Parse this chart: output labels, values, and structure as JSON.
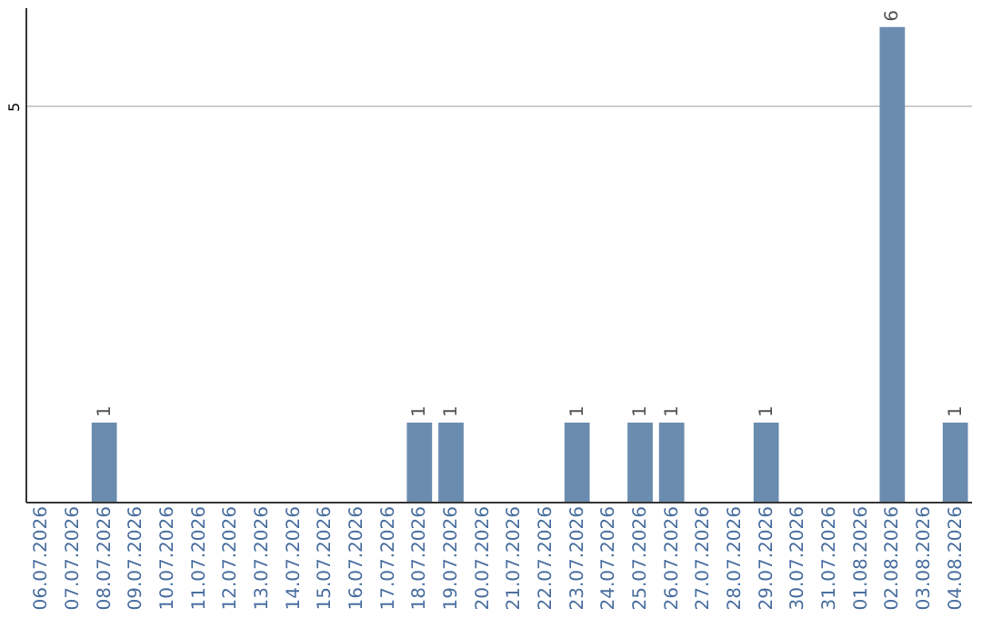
{
  "chart_data": {
    "type": "bar",
    "categories": [
      "06.07.2026",
      "07.07.2026",
      "08.07.2026",
      "09.07.2026",
      "10.07.2026",
      "11.07.2026",
      "12.07.2026",
      "13.07.2026",
      "14.07.2026",
      "15.07.2026",
      "16.07.2026",
      "17.07.2026",
      "18.07.2026",
      "19.07.2026",
      "20.07.2026",
      "21.07.2026",
      "22.07.2026",
      "23.07.2026",
      "24.07.2026",
      "25.07.2026",
      "26.07.2026",
      "27.07.2026",
      "28.07.2026",
      "29.07.2026",
      "30.07.2026",
      "31.07.2026",
      "01.08.2026",
      "02.08.2026",
      "03.08.2026",
      "04.08.2026"
    ],
    "values": [
      0,
      0,
      1,
      0,
      0,
      0,
      0,
      0,
      0,
      0,
      0,
      0,
      1,
      1,
      0,
      0,
      0,
      1,
      0,
      1,
      1,
      0,
      0,
      1,
      0,
      0,
      0,
      6,
      0,
      1
    ],
    "value_labels": [
      null,
      null,
      "1",
      null,
      null,
      null,
      null,
      null,
      null,
      null,
      null,
      null,
      "1",
      "1",
      null,
      null,
      null,
      "1",
      null,
      "1",
      "1",
      null,
      null,
      "1",
      null,
      null,
      null,
      "6",
      null,
      "1"
    ],
    "color": "#6a8caf",
    "ylim": [
      0,
      6.25
    ],
    "yticks": [
      5
    ],
    "grid": "y"
  }
}
